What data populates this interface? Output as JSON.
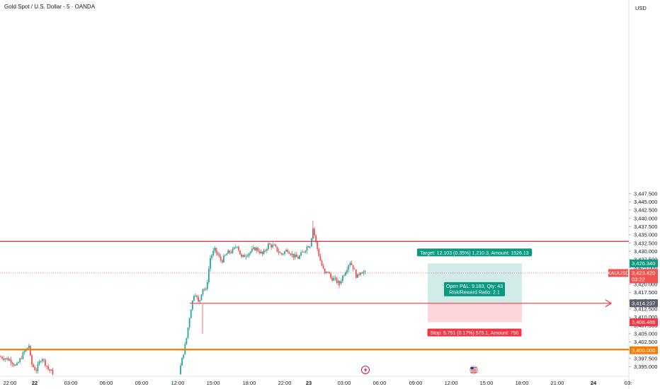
{
  "header": {
    "title": "Gold Spot / U.S. Dollar · 5 · OANDA"
  },
  "currency": "USD",
  "symbol": {
    "name": "XAUUSD",
    "price": "3,423.420",
    "countdown": "03:22"
  },
  "colors": {
    "up": "#26a69a",
    "down": "#ef5350",
    "red_line": "#f23645",
    "orange_line": "#f57c00",
    "profit_zone": "#d1ece8",
    "loss_zone": "#fcd7da",
    "target_label": "#089981",
    "stop_label": "#f23645",
    "entry_tag": "#5d606b"
  },
  "chart_data": {
    "type": "candlestick",
    "ylim": [
      3393.5,
      3448.5
    ],
    "y_ticks": [
      "3,447.500",
      "3,445.000",
      "3,442.500",
      "3,440.000",
      "3,437.500",
      "3,435.000",
      "3,432.500",
      "3,430.000",
      "3,427.500",
      "3,425.000",
      "3,422.500",
      "3,420.000",
      "3,417.500",
      "3,415.000",
      "3,412.500",
      "3,410.000",
      "3,407.500",
      "3,405.000",
      "3,402.500",
      "3,400.000",
      "3,397.500",
      "3,395.000"
    ],
    "x_ticks": [
      "22:00",
      "22",
      "03:00",
      "06:00",
      "09:00",
      "12:00",
      "15:00",
      "18:00",
      "22:00",
      "23",
      "03:00",
      "06:00",
      "09:00",
      "12:00",
      "15:00",
      "18:00",
      "21:00",
      "24",
      "03:"
    ],
    "keyframes": [
      [
        0,
        3398.0
      ],
      [
        14,
        3397.0
      ],
      [
        22,
        3395.0
      ],
      [
        32,
        3399.0
      ],
      [
        40,
        3401.5
      ],
      [
        43,
        3396.0
      ],
      [
        50,
        3393.8
      ],
      [
        58,
        3398.0
      ],
      [
        68,
        3394.0
      ],
      [
        75,
        3393.0
      ],
      [
        252,
        3393.0
      ],
      [
        256,
        3397.0
      ],
      [
        262,
        3403.0
      ],
      [
        268,
        3412.0
      ],
      [
        274,
        3418.0
      ],
      [
        280,
        3414.0
      ],
      [
        285,
        3419.0
      ],
      [
        290,
        3418.0
      ],
      [
        296,
        3428.0
      ],
      [
        302,
        3430.5
      ],
      [
        312,
        3427.0
      ],
      [
        320,
        3429.5
      ],
      [
        327,
        3430.0
      ],
      [
        334,
        3432.0
      ],
      [
        340,
        3428.0
      ],
      [
        350,
        3429.5
      ],
      [
        360,
        3431.0
      ],
      [
        370,
        3429.0
      ],
      [
        378,
        3432.0
      ],
      [
        386,
        3431.5
      ],
      [
        396,
        3429.0
      ],
      [
        405,
        3430.5
      ],
      [
        414,
        3428.5
      ],
      [
        420,
        3428.0
      ],
      [
        428,
        3430.0
      ],
      [
        433,
        3431.5
      ],
      [
        437,
        3432.0
      ],
      [
        441,
        3437.0
      ],
      [
        444,
        3434.0
      ],
      [
        448,
        3430.0
      ],
      [
        453,
        3426.0
      ],
      [
        458,
        3423.0
      ],
      [
        462,
        3424.0
      ],
      [
        466,
        3422.0
      ],
      [
        472,
        3421.5
      ],
      [
        478,
        3420.0
      ],
      [
        482,
        3422.0
      ],
      [
        488,
        3424.5
      ],
      [
        493,
        3427.0
      ],
      [
        498,
        3425.0
      ],
      [
        503,
        3422.0
      ],
      [
        508,
        3424.0
      ],
      [
        515,
        3423.4
      ]
    ],
    "horizontal_lines": [
      {
        "price": 3433.0,
        "color": "red"
      },
      {
        "price": 3400.2,
        "color": "orange"
      }
    ],
    "current_price": 3423.42,
    "position": {
      "entry": 3414.237,
      "target": 3426.34,
      "stop": 3408.486,
      "entry_label": "3,414.237",
      "target_label": "3,426.340",
      "stop_label": "3,408.486",
      "target_text": "Target: 12.103 (0.35%) 1,210.3, Amount: 1526.13",
      "stop_text": "Stop: 5.751 (0.17%) 575.1, Amount: 750",
      "pnl_text": "Open P&L: 9.183, Qty: 43",
      "ratio_text": "Risk/Reward Ratio: 2.1"
    },
    "price_tags": [
      {
        "label": "3,400.000",
        "price": 3400.0,
        "color": "orange"
      }
    ]
  }
}
